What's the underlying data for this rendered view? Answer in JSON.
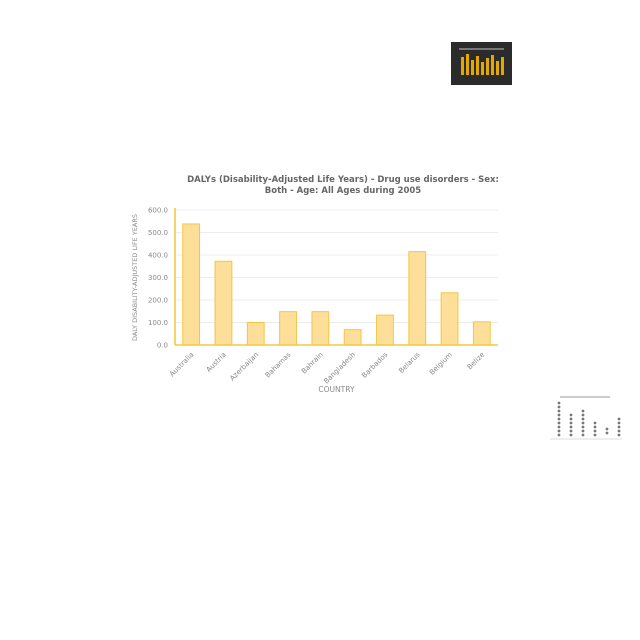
{
  "chart_data": {
    "type": "bar",
    "title": "DALYs (Disability-Adjusted Life Years) - Drug use disorders - Sex: Both - Age: All Ages during 2005",
    "xlabel": "COUNTRY",
    "ylabel": "DALY DISABILITY-ADJUSTED LIFE YEARS",
    "categories": [
      "Australia",
      "Austria",
      "Azerbaijan",
      "Bahamas",
      "Bahrain",
      "Bangladesh",
      "Barbados",
      "Belarus",
      "Belgium",
      "Belize"
    ],
    "values": [
      538,
      372,
      100,
      148,
      148,
      68,
      133,
      415,
      232,
      103
    ],
    "ylim": [
      0,
      600
    ],
    "yticks": [
      "0.0",
      "100.0",
      "200.0",
      "300.0",
      "400.0",
      "500.0",
      "600.0"
    ],
    "grid": true,
    "colors": {
      "bar_fill": "#fddf9a",
      "bar_stroke": "#f4c542",
      "axis": "#f2c844",
      "grid": "#e6e6e6",
      "text": "#8a8a8a"
    }
  }
}
